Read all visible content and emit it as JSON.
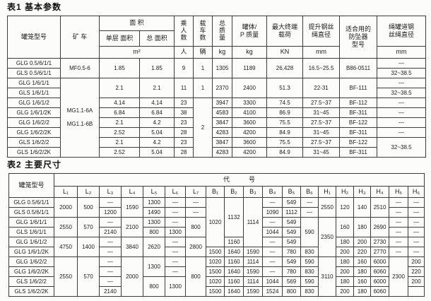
{
  "colors": {
    "ink": "#1c1c1c",
    "paper": "#fcfcfa",
    "border": "#3c3c3c"
  },
  "table1": {
    "title": "表1 基本参数",
    "header_rows": [
      [
        {
          "t": "罐笼型号",
          "rs": 3
        },
        {
          "t": "矿 车",
          "rs": 3
        },
        {
          "t": "面  积",
          "cs": 2
        },
        {
          "t": "乘\n人\n数",
          "rs": 2,
          "c": "vert"
        },
        {
          "t": "载\n车\n数",
          "rs": 2,
          "c": "vert"
        },
        {
          "t": "总\n质\n量",
          "rs": 2,
          "c": "vert"
        },
        {
          "t": "罐体/\nP 质量",
          "rs": 2
        },
        {
          "t": "最大终端\n载荷",
          "rs": 2
        },
        {
          "t": "提升钢丝\n绳直径",
          "rs": 2
        },
        {
          "t": "适合用的\n防坠器\n型号",
          "rs": 3
        },
        {
          "t": "绳罐道钢\n丝绳直径",
          "rs": 2
        }
      ],
      [
        {
          "t": "单层 面积"
        },
        {
          "t": "总 面积"
        }
      ],
      [
        {
          "t": "m²",
          "cs": 2
        },
        {
          "t": "人"
        },
        {
          "t": "辆"
        },
        {
          "t": "kg"
        },
        {
          "t": "kg"
        },
        {
          "t": "KN"
        },
        {
          "t": "mm"
        },
        {
          "t": "mm"
        }
      ]
    ],
    "rows": [
      [
        {
          "t": "GLG 0.5/6/1/1"
        },
        {
          "t": "MF0.5-6",
          "rs": 2,
          "c": "mc"
        },
        {
          "t": "1.85",
          "rs": 2
        },
        {
          "t": "1.85",
          "rs": 2
        },
        {
          "t": "9",
          "rs": 2
        },
        {
          "t": "1",
          "rs": 2
        },
        {
          "t": "1305",
          "rs": 2
        },
        {
          "t": "1189",
          "rs": 2
        },
        {
          "t": "26.428",
          "rs": 2
        },
        {
          "t": "16.5~25.5",
          "rs": 2
        },
        {
          "t": "B86-0511",
          "rs": 2
        },
        {
          "t": "—"
        }
      ],
      [
        {
          "t": "GLS 0.5/6/1/1"
        },
        {
          "t": "32~38.5"
        }
      ],
      [
        {
          "t": "GLG 1/6/1/1"
        },
        {
          "t": "MG1.1-6A\n\nMG1.1-6B",
          "rs": 8,
          "c": "mc"
        },
        {
          "t": "2.1",
          "rs": 2
        },
        {
          "t": "2.1",
          "rs": 2
        },
        {
          "t": "11",
          "rs": 2
        },
        {
          "t": "1",
          "rs": 2
        },
        {
          "t": "2370",
          "rs": 2
        },
        {
          "t": "2400",
          "rs": 2
        },
        {
          "t": "51.3",
          "rs": 2
        },
        {
          "t": "22-31",
          "rs": 2
        },
        {
          "t": "BF-111",
          "rs": 2
        },
        {
          "t": "—"
        }
      ],
      [
        {
          "t": "GLS 1/6/1/1"
        },
        {
          "t": "32~38.5"
        }
      ],
      [
        {
          "t": "GLG 1/6/1/2"
        },
        {
          "t": "4.14"
        },
        {
          "t": "4.14"
        },
        {
          "t": "23"
        },
        {
          "t": "2",
          "rs": 6
        },
        {
          "t": "3947"
        },
        {
          "t": "3300"
        },
        {
          "t": "74.5"
        },
        {
          "t": "27.5~37"
        },
        {
          "t": "BF-112"
        },
        {
          "t": "—"
        }
      ],
      [
        {
          "t": "GLG 1/6/1/2K"
        },
        {
          "t": "6.84"
        },
        {
          "t": "6.84"
        },
        {
          "t": "38"
        },
        {
          "t": "4583"
        },
        {
          "t": "4100"
        },
        {
          "t": "86.9"
        },
        {
          "t": "31~45"
        },
        {
          "t": "BF-311"
        },
        {
          "t": "—"
        }
      ],
      [
        {
          "t": "GLG 1/6/2/2"
        },
        {
          "t": "2.1"
        },
        {
          "t": "4.2"
        },
        {
          "t": "23"
        },
        {
          "t": "3847"
        },
        {
          "t": "3600"
        },
        {
          "t": "75.5"
        },
        {
          "t": "27.5~37"
        },
        {
          "t": "BF-122"
        },
        {
          "t": "—"
        }
      ],
      [
        {
          "t": "GLG 1/6/2/2K"
        },
        {
          "t": "2.52"
        },
        {
          "t": "5.04"
        },
        {
          "t": "28"
        },
        {
          "t": "4283"
        },
        {
          "t": "4200"
        },
        {
          "t": "84.9"
        },
        {
          "t": "31~45"
        },
        {
          "t": "BF-311"
        },
        {
          "t": "—"
        }
      ],
      [
        {
          "t": "GLS 1/6/2/2"
        },
        {
          "t": "2.1"
        },
        {
          "t": "4.2"
        },
        {
          "t": "23"
        },
        {
          "t": "3847"
        },
        {
          "t": "3600"
        },
        {
          "t": "75.5"
        },
        {
          "t": "27.5~37"
        },
        {
          "t": "BF-122"
        },
        {
          "t": "32~38.5",
          "rs": 2
        }
      ],
      [
        {
          "t": "GLS 1/6/2/2K"
        },
        {
          "t": "2.52"
        },
        {
          "t": "5.04"
        },
        {
          "t": "28"
        },
        {
          "t": "4283"
        },
        {
          "t": "4200"
        },
        {
          "t": "84.9"
        },
        {
          "t": "31~45"
        },
        {
          "t": "BF-311"
        }
      ]
    ]
  },
  "table2": {
    "title": "表2 主要尺寸",
    "header_rows": [
      [
        {
          "t": "罐笼型号",
          "rs": 2
        },
        {
          "t": "代　　　号",
          "cs": 19
        }
      ],
      [
        {
          "t": "L₁"
        },
        {
          "t": "L₂"
        },
        {
          "t": "L₃"
        },
        {
          "t": "L₄"
        },
        {
          "t": "L₅"
        },
        {
          "t": "L₆"
        },
        {
          "t": "L₇"
        },
        {
          "t": "B₁"
        },
        {
          "t": "B₂"
        },
        {
          "t": "B₃"
        },
        {
          "t": "B₄"
        },
        {
          "t": "B₅"
        },
        {
          "t": "B₆"
        },
        {
          "t": "H₁"
        },
        {
          "t": "H₂"
        },
        {
          "t": "H₃"
        },
        {
          "t": "H₄"
        },
        {
          "t": "H₅"
        },
        {
          "t": "H₆"
        }
      ]
    ],
    "rows": [
      [
        {
          "t": "GLG 0.5/6/1/1"
        },
        {
          "t": "2000",
          "rs": 2
        },
        {
          "t": "500",
          "rs": 2
        },
        {
          "t": "—"
        },
        {
          "t": "1590",
          "rs": 2
        },
        {
          "t": "1300"
        },
        {
          "t": "—"
        },
        {
          "t": "—"
        },
        {
          "t": "1020",
          "rs": 5
        },
        {
          "t": "1132",
          "rs": 4
        },
        {
          "t": "1114",
          "rs": 5
        },
        {
          "t": "—"
        },
        {
          "t": "549"
        },
        {
          "t": "—"
        },
        {
          "t": "2550",
          "rs": 2
        },
        {
          "t": "120",
          "rs": 2
        },
        {
          "t": "140",
          "rs": 2
        },
        {
          "t": "2510",
          "rs": 2
        },
        {
          "t": "—"
        },
        {
          "t": "—"
        }
      ],
      [
        {
          "t": "GLS 0.5/6/1/1"
        },
        {
          "t": "1200"
        },
        {
          "t": "1490"
        },
        {
          "t": "—"
        },
        {
          "t": "—"
        },
        {
          "t": "1090"
        },
        {
          "t": "1112"
        },
        {
          "t": "—"
        },
        {
          "t": "—"
        },
        {
          "t": "—"
        }
      ],
      [
        {
          "t": "GLG 1/6/1/1"
        },
        {
          "t": "2550",
          "rs": 2
        },
        {
          "t": "570",
          "rs": 2
        },
        {
          "t": "—"
        },
        {
          "t": "2100",
          "rs": 2
        },
        {
          "t": "1300"
        },
        {
          "t": "—"
        },
        {
          "t": "800",
          "rs": 2
        },
        {
          "t": "—"
        },
        {
          "t": "549"
        },
        {
          "t": "590",
          "rs": 3
        },
        {
          "t": "2350",
          "rs": 4
        },
        {
          "t": "160",
          "rs": 2
        },
        {
          "t": "180",
          "rs": 2
        },
        {
          "t": "2690",
          "rs": 2
        },
        {
          "t": "—"
        },
        {
          "t": "—"
        }
      ],
      [
        {
          "t": "GLS 1/6/1/1"
        },
        {
          "t": "2140"
        },
        {
          "t": "800"
        },
        {
          "t": "1300"
        },
        {
          "t": "1044"
        },
        {
          "t": "549"
        },
        {
          "t": "—"
        },
        {
          "t": "—"
        }
      ],
      [
        {
          "t": "GLG 1/6/1/2"
        },
        {
          "t": "4750",
          "rs": 2
        },
        {
          "t": "1400",
          "rs": 2
        },
        {
          "t": "—"
        },
        {
          "t": "3840",
          "rs": 2
        },
        {
          "t": "2620",
          "rs": 2
        },
        {
          "t": "—"
        },
        {
          "t": "2800",
          "rs": 2
        },
        {
          "t": "1160"
        },
        {
          "t": "—"
        },
        {
          "t": "549"
        },
        {
          "t": "180"
        },
        {
          "t": "200"
        },
        {
          "t": "2730"
        },
        {
          "t": "—"
        },
        {
          "t": "—"
        }
      ],
      [
        {
          "t": "GLG 1/6/1/2K"
        },
        {
          "t": "—"
        },
        {
          "t": "—"
        },
        {
          "t": "1500"
        },
        {
          "t": "1640"
        },
        {
          "t": "1590"
        },
        {
          "t": "—"
        },
        {
          "t": "780"
        },
        {
          "t": "830"
        },
        {
          "t": "200"
        },
        {
          "t": "220"
        },
        {
          "t": "2770"
        },
        {
          "t": "—"
        },
        {
          "t": "—"
        }
      ],
      [
        {
          "t": "GLG 1/6/2/2"
        },
        {
          "t": "2550",
          "rs": 4
        },
        {
          "t": "570",
          "rs": 4
        },
        {
          "t": "—"
        },
        {
          "t": "2000",
          "rs": 4
        },
        {
          "t": "1300",
          "rs": 2
        },
        {
          "t": "—"
        },
        {
          "t": "800",
          "rs": 4
        },
        {
          "t": "1020"
        },
        {
          "t": "1160"
        },
        {
          "t": "1114"
        },
        {
          "t": "—"
        },
        {
          "t": "549"
        },
        {
          "t": "590"
        },
        {
          "t": "3110",
          "rs": 4
        },
        {
          "t": "180"
        },
        {
          "t": "160"
        },
        {
          "t": "6000"
        },
        {
          "t": "2300",
          "rs": 4
        },
        {
          "t": "200"
        }
      ],
      [
        {
          "t": "GLG 1/6/2/2K"
        },
        {
          "t": "—"
        },
        {
          "t": "—"
        },
        {
          "t": "1500"
        },
        {
          "t": "1640"
        },
        {
          "t": "1590"
        },
        {
          "t": "—"
        },
        {
          "t": "780"
        },
        {
          "t": "830"
        },
        {
          "t": "200"
        },
        {
          "t": "180"
        },
        {
          "t": "6060"
        },
        {
          "t": "220"
        }
      ],
      [
        {
          "t": "GLS 1/6/2/2"
        },
        {
          "t": "—"
        },
        {
          "t": "800",
          "rs": 2
        },
        {
          "t": "1300",
          "rs": 2
        },
        {
          "t": "1020"
        },
        {
          "t": "1160"
        },
        {
          "t": "1114"
        },
        {
          "t": "1044"
        },
        {
          "t": "569"
        },
        {
          "t": "590"
        },
        {
          "t": "180"
        },
        {
          "t": "160"
        },
        {
          "t": "6000"
        },
        {
          "t": "200"
        }
      ],
      [
        {
          "t": "GLS 1/6/2/2K"
        },
        {
          "t": "2140"
        },
        {
          "t": "1500"
        },
        {
          "t": "1640"
        },
        {
          "t": "1590"
        },
        {
          "t": "1524"
        },
        {
          "t": "800"
        },
        {
          "t": "830"
        },
        {
          "t": "200"
        },
        {
          "t": "180"
        },
        {
          "t": "6060"
        },
        {
          "t": ""
        }
      ]
    ]
  }
}
